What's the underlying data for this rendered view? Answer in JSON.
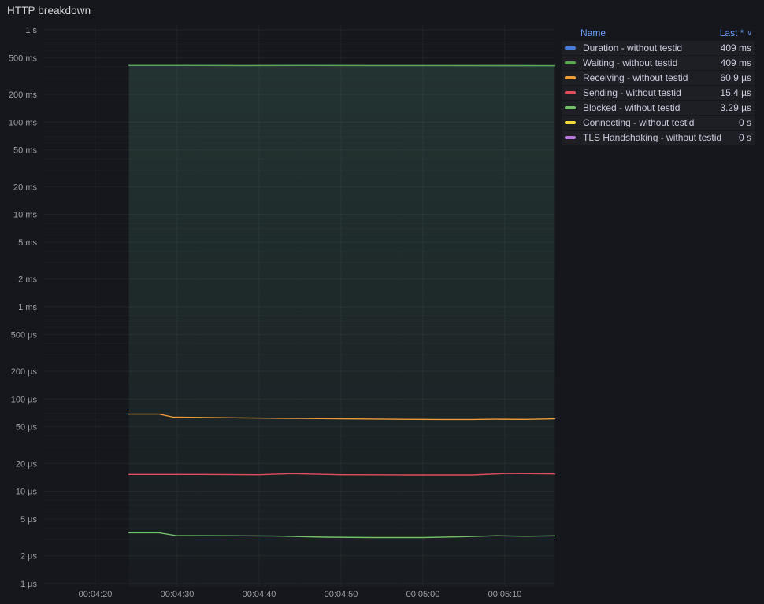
{
  "panel": {
    "title": "HTTP breakdown"
  },
  "legend": {
    "name_label": "Name",
    "last_label": "Last *",
    "sort_icon": "∨"
  },
  "chart_data": {
    "type": "line",
    "title": "HTTP breakdown",
    "xlabel": "",
    "ylabel": "",
    "y_scale": "log10",
    "y_unit": "duration",
    "ylim_us": [
      1,
      1000000
    ],
    "x_range_labels": [
      "00:04:24",
      "00:05:16"
    ],
    "grid": true,
    "legend_position": "right-table",
    "x_ticks": [
      {
        "t": 260,
        "label": "00:04:20"
      },
      {
        "t": 270,
        "label": "00:04:30"
      },
      {
        "t": 280,
        "label": "00:04:40"
      },
      {
        "t": 290,
        "label": "00:04:50"
      },
      {
        "t": 300,
        "label": "00:05:00"
      },
      {
        "t": 310,
        "label": "00:05:10"
      }
    ],
    "y_ticks": [
      {
        "v_us": 1000000,
        "label": "1 s"
      },
      {
        "v_us": 500000,
        "label": "500 ms"
      },
      {
        "v_us": 200000,
        "label": "200 ms"
      },
      {
        "v_us": 100000,
        "label": "100 ms"
      },
      {
        "v_us": 50000,
        "label": "50 ms"
      },
      {
        "v_us": 20000,
        "label": "20 ms"
      },
      {
        "v_us": 10000,
        "label": "10 ms"
      },
      {
        "v_us": 5000,
        "label": "5 ms"
      },
      {
        "v_us": 2000,
        "label": "2 ms"
      },
      {
        "v_us": 1000,
        "label": "1 ms"
      },
      {
        "v_us": 500,
        "label": "500 µs"
      },
      {
        "v_us": 200,
        "label": "200 µs"
      },
      {
        "v_us": 100,
        "label": "100 µs"
      },
      {
        "v_us": 50,
        "label": "50 µs"
      },
      {
        "v_us": 20,
        "label": "20 µs"
      },
      {
        "v_us": 10,
        "label": "10 µs"
      },
      {
        "v_us": 5,
        "label": "5 µs"
      },
      {
        "v_us": 2,
        "label": "2 µs"
      },
      {
        "v_us": 1,
        "label": "1 µs"
      }
    ],
    "series": [
      {
        "key": "duration",
        "name": "Duration - without testid",
        "last": "409 ms",
        "color": "#4A7CD9",
        "fill_opacity": 0.08,
        "points": [
          [
            264.1,
            412000
          ],
          [
            270,
            412000
          ],
          [
            278,
            410000
          ],
          [
            286,
            411000
          ],
          [
            294,
            410000
          ],
          [
            302,
            410500
          ],
          [
            310,
            409500
          ],
          [
            316.1,
            409000
          ]
        ]
      },
      {
        "key": "waiting",
        "name": "Waiting - without testid",
        "last": "409 ms",
        "color": "#5CA653",
        "fill_opacity": 0.15,
        "points": [
          [
            264.1,
            412000
          ],
          [
            270,
            412000
          ],
          [
            278,
            410000
          ],
          [
            286,
            411000
          ],
          [
            294,
            410000
          ],
          [
            302,
            410500
          ],
          [
            310,
            409500
          ],
          [
            316.1,
            409000
          ]
        ]
      },
      {
        "key": "receiving",
        "name": "Receiving - without testid",
        "last": "60.9 µs",
        "color": "#EE9B3A",
        "fill_opacity": 0,
        "points": [
          [
            264.1,
            68.5
          ],
          [
            267.8,
            68.5
          ],
          [
            269.5,
            63.5
          ],
          [
            272,
            63.2
          ],
          [
            278,
            62.4
          ],
          [
            284,
            61.6
          ],
          [
            290,
            60.9
          ],
          [
            296,
            60.3
          ],
          [
            302,
            60.0
          ],
          [
            306,
            59.9
          ],
          [
            309,
            60.3
          ],
          [
            312.5,
            60.1
          ],
          [
            316.1,
            60.9
          ]
        ]
      },
      {
        "key": "sending",
        "name": "Sending - without testid",
        "last": "15.4 µs",
        "color": "#E24D5C",
        "fill_opacity": 0,
        "points": [
          [
            264.1,
            15.2
          ],
          [
            272,
            15.2
          ],
          [
            280,
            15.1
          ],
          [
            284,
            15.5
          ],
          [
            290,
            15.1
          ],
          [
            298,
            15.0
          ],
          [
            306,
            15.0
          ],
          [
            310.5,
            15.6
          ],
          [
            316.1,
            15.4
          ]
        ]
      },
      {
        "key": "blocked",
        "name": "Blocked - without testid",
        "last": "3.29 µs",
        "color": "#73BF69",
        "fill_opacity": 0,
        "points": [
          [
            264.1,
            3.55
          ],
          [
            267.8,
            3.55
          ],
          [
            269.8,
            3.32
          ],
          [
            276,
            3.3
          ],
          [
            282,
            3.27
          ],
          [
            288,
            3.18
          ],
          [
            294,
            3.15
          ],
          [
            300,
            3.15
          ],
          [
            305,
            3.22
          ],
          [
            309,
            3.3
          ],
          [
            312.5,
            3.26
          ],
          [
            316.1,
            3.29
          ]
        ]
      },
      {
        "key": "connecting",
        "name": "Connecting - without testid",
        "last": "0 s",
        "color": "#EFD83B",
        "fill_opacity": 0,
        "points": []
      },
      {
        "key": "tls",
        "name": "TLS Handshaking - without testid",
        "last": "0 s",
        "color": "#B877D9",
        "fill_opacity": 0,
        "points": []
      }
    ]
  }
}
